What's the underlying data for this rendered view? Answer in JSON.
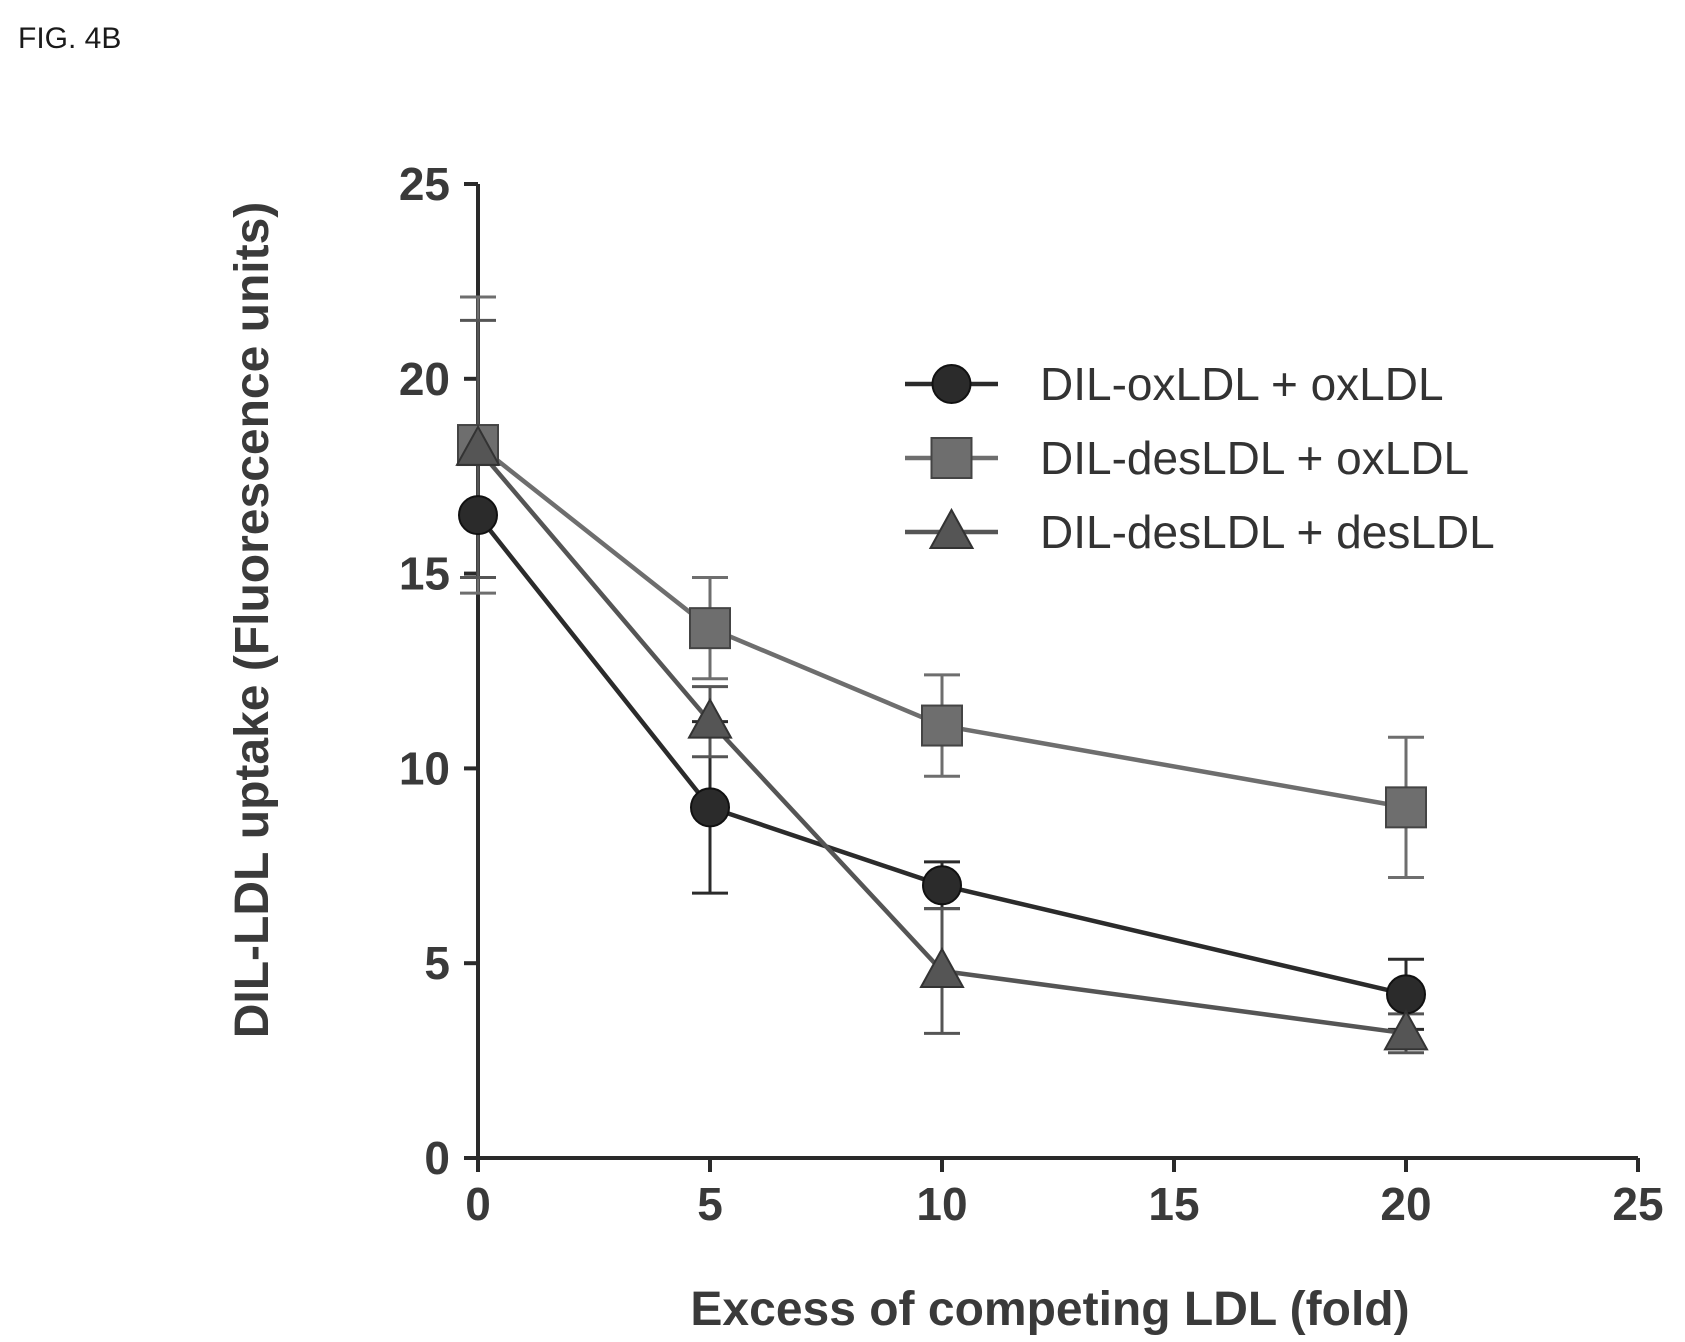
{
  "figure_label": "FIG. 4B",
  "chart_data": {
    "type": "line",
    "title": "",
    "xlabel": "Excess of competing LDL (fold)",
    "ylabel": "DIL-LDL uptake (Fluorescence units)",
    "xlim": [
      0,
      25
    ],
    "ylim": [
      0,
      25
    ],
    "xticks": [
      0,
      5,
      10,
      15,
      20,
      25
    ],
    "yticks": [
      0,
      5,
      10,
      15,
      20,
      25
    ],
    "grid": false,
    "legend_position": "top-right",
    "x": [
      0,
      5,
      10,
      20
    ],
    "series": [
      {
        "name": "DIL-oxLDL + oxLDL",
        "marker": "circle",
        "color": "#2b2b2b",
        "values": [
          16.5,
          9.0,
          7.0,
          4.2
        ],
        "errors": [
          1.6,
          2.2,
          0.6,
          0.9
        ]
      },
      {
        "name": "DIL-desLDL + oxLDL",
        "marker": "square",
        "color": "#6e6e6e",
        "values": [
          18.3,
          13.6,
          11.1,
          9.0
        ],
        "errors": [
          3.8,
          1.3,
          1.3,
          1.8
        ]
      },
      {
        "name": "DIL-desLDL + desLDL",
        "marker": "triangle",
        "color": "#555555",
        "values": [
          18.2,
          11.2,
          4.8,
          3.2
        ],
        "errors": [
          3.3,
          0.9,
          1.6,
          0.5
        ]
      }
    ]
  }
}
